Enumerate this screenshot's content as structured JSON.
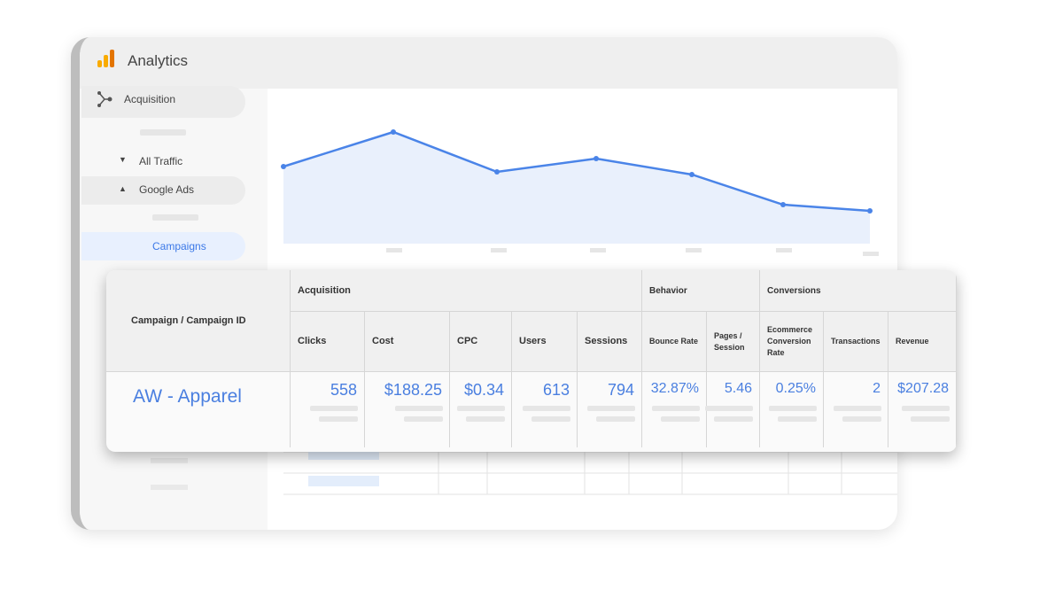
{
  "app": {
    "title": "Analytics"
  },
  "nav": {
    "items": [
      "Acquisition",
      "All Traffic",
      "Google Ads",
      "Campaigns"
    ]
  },
  "table": {
    "first_header": "Campaign / Campaign ID",
    "groups": [
      {
        "label": "Acquisition",
        "columns": [
          "Clicks",
          "Cost",
          "CPC",
          "Users",
          "Sessions"
        ]
      },
      {
        "label": "Behavior",
        "columns": [
          "Bounce Rate",
          "Pages / Session"
        ]
      },
      {
        "label": "Conversions",
        "columns": [
          "Ecommerce Conversion Rate",
          "Transactions",
          "Revenue"
        ]
      }
    ],
    "row": {
      "name": "AW - Apparel",
      "cells": [
        "558",
        "$188.25",
        "$0.34",
        "613",
        "794",
        "32.87%",
        "5.46",
        "0.25%",
        "2",
        "$207.28"
      ]
    }
  }
}
